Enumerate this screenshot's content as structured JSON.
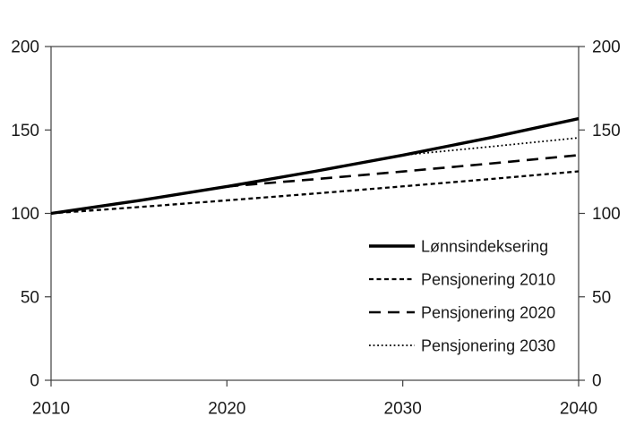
{
  "figure": {
    "background": "#ffffff",
    "text_color": "#1a1a1a",
    "series_color": "#000000",
    "axis_color": "#404040"
  },
  "chart_data": {
    "type": "line",
    "title": "",
    "xlabel": "",
    "ylabel": "",
    "xlim": [
      2010,
      2040
    ],
    "ylim": [
      0,
      200
    ],
    "x_ticks": [
      2010,
      2020,
      2030,
      2040
    ],
    "y_ticks_left": [
      0,
      50,
      100,
      150,
      200
    ],
    "y_ticks_right": [
      0,
      50,
      100,
      150,
      200
    ],
    "grid": false,
    "plot_frame": true,
    "legend_position": "inside-lower-right",
    "series": [
      {
        "name": "Lønnsindeksering",
        "style": "solid",
        "x": [
          2010,
          2015,
          2020,
          2025,
          2030,
          2035,
          2040
        ],
        "values": [
          100,
          107.7,
          116.1,
          125.2,
          134.9,
          145.4,
          156.8
        ]
      },
      {
        "name": "Pensjonering 2010",
        "style": "short-dash",
        "x": [
          2010,
          2015,
          2020,
          2025,
          2030,
          2035,
          2040
        ],
        "values": [
          100,
          103.8,
          107.8,
          111.9,
          116.2,
          120.6,
          125.2
        ]
      },
      {
        "name": "Pensjonering 2020",
        "style": "long-dash",
        "x": [
          2020,
          2025,
          2030,
          2035,
          2040
        ],
        "values": [
          116.1,
          120.5,
          125.1,
          129.9,
          134.9
        ]
      },
      {
        "name": "Pensjonering 2030",
        "style": "dotted",
        "x": [
          2030,
          2035,
          2040
        ],
        "values": [
          134.9,
          140.0,
          145.3
        ]
      }
    ]
  }
}
